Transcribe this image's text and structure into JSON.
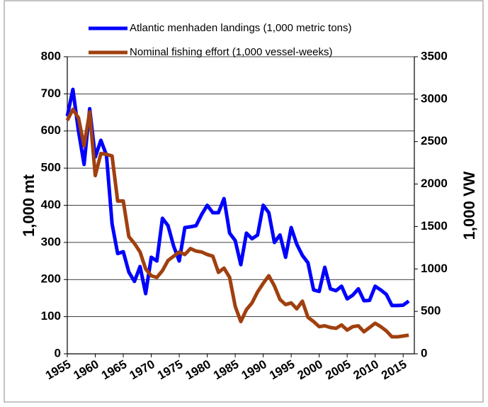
{
  "chart_data": {
    "type": "line",
    "x": [
      1955,
      1956,
      1957,
      1958,
      1959,
      1960,
      1961,
      1962,
      1963,
      1964,
      1965,
      1966,
      1967,
      1968,
      1969,
      1970,
      1971,
      1972,
      1973,
      1974,
      1975,
      1976,
      1977,
      1978,
      1979,
      1980,
      1981,
      1982,
      1983,
      1984,
      1985,
      1986,
      1987,
      1988,
      1989,
      1990,
      1991,
      1992,
      1993,
      1994,
      1995,
      1996,
      1997,
      1998,
      1999,
      2000,
      2001,
      2002,
      2003,
      2004,
      2005,
      2006,
      2007,
      2008,
      2009,
      2010,
      2011,
      2012,
      2013,
      2014,
      2015,
      2016
    ],
    "series": [
      {
        "name": "Atlantic menhaden landings (1,000  metric tons)",
        "color": "#0000ff",
        "values": [
          640,
          712,
          600,
          510,
          660,
          530,
          575,
          535,
          350,
          270,
          275,
          220,
          195,
          235,
          162,
          260,
          250,
          365,
          345,
          290,
          250,
          340,
          342,
          345,
          375,
          400,
          380,
          380,
          418,
          325,
          305,
          240,
          325,
          310,
          320,
          400,
          380,
          300,
          320,
          260,
          340,
          295,
          265,
          245,
          172,
          168,
          233,
          175,
          170,
          182,
          148,
          158,
          175,
          143,
          144,
          182,
          172,
          160,
          130,
          130,
          131,
          142
        ]
      },
      {
        "name": "Nominal fishing effort (1,000 vessel-weeks)",
        "color": "#a0400f",
        "axis": "y2",
        "values": [
          2750,
          2880,
          2780,
          2450,
          2850,
          2100,
          2360,
          2350,
          2330,
          1800,
          1800,
          1380,
          1300,
          1200,
          1000,
          920,
          900,
          980,
          1100,
          1150,
          1200,
          1170,
          1240,
          1210,
          1200,
          1170,
          1150,
          960,
          1010,
          900,
          560,
          380,
          520,
          600,
          730,
          830,
          920,
          800,
          640,
          580,
          600,
          530,
          620,
          430,
          380,
          320,
          330,
          310,
          300,
          340,
          280,
          320,
          330,
          260,
          310,
          360,
          320,
          270,
          200,
          200,
          210,
          220
        ]
      }
    ],
    "ylabel": "1,000 mt",
    "y2label": "1,000 VW",
    "xlim": [
      1955,
      2017
    ],
    "xticks": [
      1955,
      1960,
      1965,
      1970,
      1975,
      1980,
      1985,
      1990,
      1995,
      2000,
      2005,
      2010,
      2015
    ],
    "ylim": [
      0,
      800
    ],
    "yticks": [
      0,
      100,
      200,
      300,
      400,
      500,
      600,
      700,
      800
    ],
    "y2lim": [
      0,
      3500
    ],
    "y2ticks": [
      0,
      500,
      1000,
      1500,
      2000,
      2500,
      3000,
      3500
    ],
    "grid": true
  }
}
